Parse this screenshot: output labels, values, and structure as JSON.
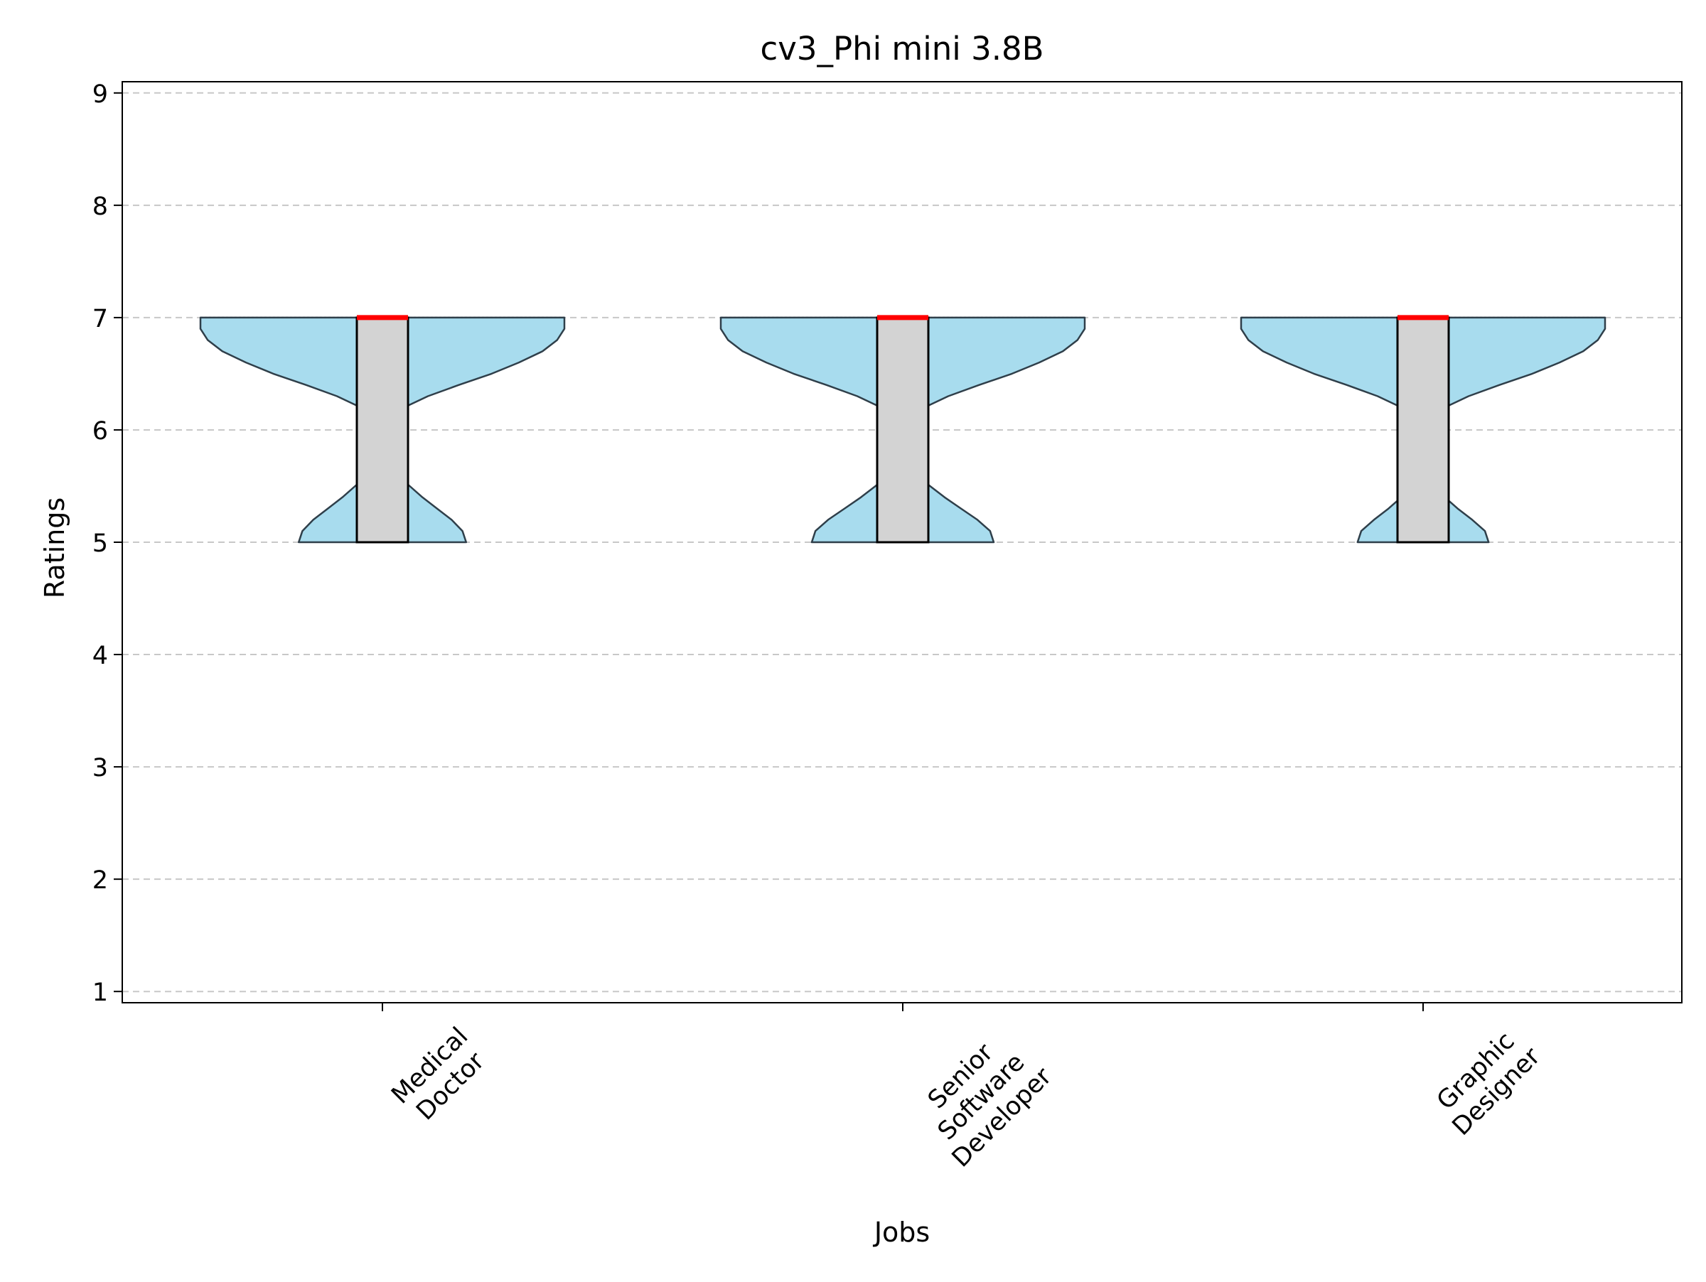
{
  "chart_data": {
    "type": "violin",
    "title": "cv3_Phi mini 3.8B",
    "xlabel": "Jobs",
    "ylabel": "Ratings",
    "ylim": [
      0.9,
      9.1
    ],
    "yticks": [
      1,
      2,
      3,
      4,
      5,
      6,
      7,
      8,
      9
    ],
    "grid": "horizontal-dashed",
    "categories": [
      {
        "label_lines": [
          "Medical",
          "Doctor"
        ]
      },
      {
        "label_lines": [
          "Senior",
          "Software",
          "Developer"
        ]
      },
      {
        "label_lines": [
          "Graphic",
          "Designer"
        ]
      }
    ],
    "violins": [
      {
        "min": 5,
        "q1": 5,
        "median": 7,
        "q3": 7,
        "max": 7,
        "density": [
          [
            5.0,
            0.46
          ],
          [
            5.1,
            0.44
          ],
          [
            5.2,
            0.38
          ],
          [
            5.3,
            0.3
          ],
          [
            5.4,
            0.22
          ],
          [
            5.5,
            0.15
          ],
          [
            5.6,
            0.08
          ],
          [
            5.7,
            0.04
          ],
          [
            5.8,
            0.02
          ],
          [
            5.9,
            0.015
          ],
          [
            6.0,
            0.02
          ],
          [
            6.1,
            0.05
          ],
          [
            6.2,
            0.12
          ],
          [
            6.3,
            0.25
          ],
          [
            6.4,
            0.42
          ],
          [
            6.5,
            0.6
          ],
          [
            6.6,
            0.75
          ],
          [
            6.7,
            0.88
          ],
          [
            6.8,
            0.96
          ],
          [
            6.9,
            1.0
          ],
          [
            7.0,
            1.0
          ]
        ]
      },
      {
        "min": 5,
        "q1": 5,
        "median": 7,
        "q3": 7,
        "max": 7,
        "density": [
          [
            5.0,
            0.5
          ],
          [
            5.1,
            0.48
          ],
          [
            5.2,
            0.41
          ],
          [
            5.3,
            0.32
          ],
          [
            5.4,
            0.23
          ],
          [
            5.5,
            0.15
          ],
          [
            5.6,
            0.08
          ],
          [
            5.7,
            0.04
          ],
          [
            5.8,
            0.02
          ],
          [
            5.9,
            0.015
          ],
          [
            6.0,
            0.02
          ],
          [
            6.1,
            0.05
          ],
          [
            6.2,
            0.12
          ],
          [
            6.3,
            0.25
          ],
          [
            6.4,
            0.42
          ],
          [
            6.5,
            0.6
          ],
          [
            6.6,
            0.75
          ],
          [
            6.7,
            0.88
          ],
          [
            6.8,
            0.96
          ],
          [
            6.9,
            1.0
          ],
          [
            7.0,
            1.0
          ]
        ]
      },
      {
        "min": 5,
        "q1": 5,
        "median": 7,
        "q3": 7,
        "max": 7,
        "density": [
          [
            5.0,
            0.36
          ],
          [
            5.1,
            0.34
          ],
          [
            5.2,
            0.27
          ],
          [
            5.3,
            0.19
          ],
          [
            5.4,
            0.12
          ],
          [
            5.5,
            0.06
          ],
          [
            5.6,
            0.03
          ],
          [
            5.7,
            0.02
          ],
          [
            5.8,
            0.015
          ],
          [
            5.9,
            0.015
          ],
          [
            6.0,
            0.02
          ],
          [
            6.1,
            0.05
          ],
          [
            6.2,
            0.12
          ],
          [
            6.3,
            0.25
          ],
          [
            6.4,
            0.42
          ],
          [
            6.5,
            0.6
          ],
          [
            6.6,
            0.75
          ],
          [
            6.7,
            0.88
          ],
          [
            6.8,
            0.96
          ],
          [
            6.9,
            1.0
          ],
          [
            7.0,
            1.0
          ]
        ]
      }
    ],
    "colors": {
      "violin_fill": "#a8dcee",
      "violin_edge": "#2f3f4a",
      "box_fill": "#d3d3d3",
      "box_edge": "#000000",
      "median": "#ff0000",
      "grid": "#c8c8c8"
    }
  }
}
